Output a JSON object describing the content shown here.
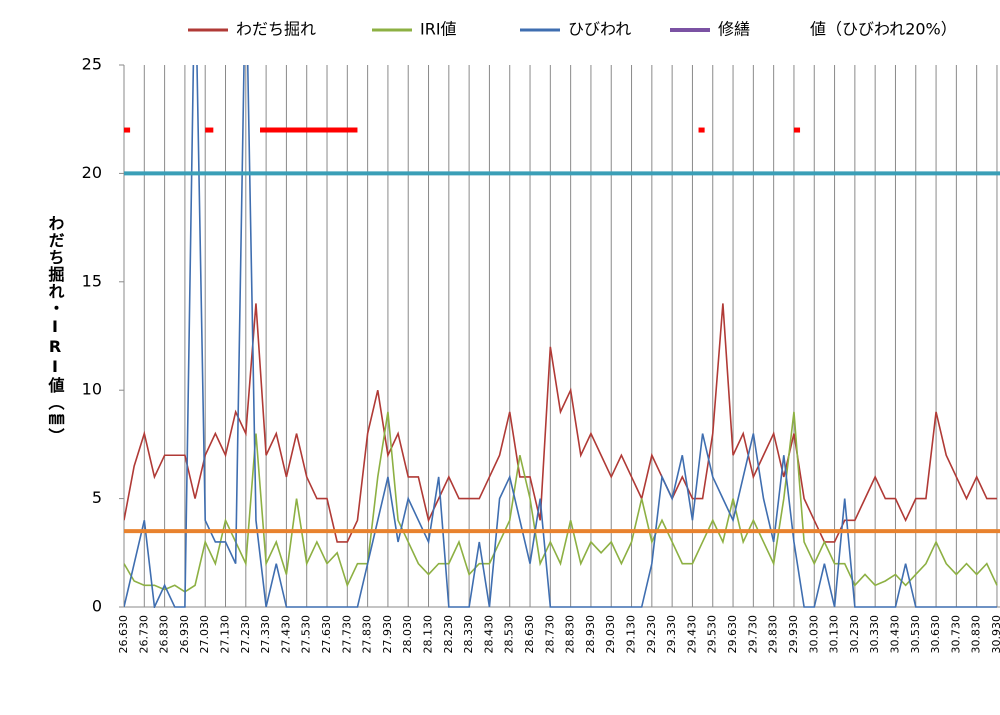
{
  "chart_data": {
    "type": "line",
    "ylabel": "わだち掘れ・IRI値（㎜）",
    "x": [
      26.63,
      26.68,
      26.73,
      26.78,
      26.83,
      26.88,
      26.93,
      26.98,
      27.03,
      27.08,
      27.13,
      27.18,
      27.23,
      27.28,
      27.33,
      27.38,
      27.43,
      27.48,
      27.53,
      27.58,
      27.63,
      27.68,
      27.73,
      27.78,
      27.83,
      27.88,
      27.93,
      27.98,
      28.03,
      28.08,
      28.13,
      28.18,
      28.23,
      28.28,
      28.33,
      28.38,
      28.43,
      28.48,
      28.53,
      28.58,
      28.63,
      28.68,
      28.73,
      28.78,
      28.83,
      28.88,
      28.93,
      28.98,
      29.03,
      29.08,
      29.13,
      29.18,
      29.23,
      29.28,
      29.33,
      29.38,
      29.43,
      29.48,
      29.53,
      29.58,
      29.63,
      29.68,
      29.73,
      29.78,
      29.83,
      29.88,
      29.93,
      29.98,
      30.03,
      30.08,
      30.13,
      30.18,
      30.23,
      30.28,
      30.33,
      30.38,
      30.43,
      30.48,
      30.53,
      30.58,
      30.63,
      30.68,
      30.73,
      30.78,
      30.83,
      30.88,
      30.93
    ],
    "series": [
      {
        "name": "わだち掘れ",
        "color": "#b03a36",
        "values": [
          4,
          6.5,
          8,
          6,
          7,
          7,
          7,
          5,
          7,
          8,
          7,
          9,
          8,
          14,
          7,
          8,
          6,
          8,
          6,
          5,
          5,
          3,
          3,
          4,
          8,
          10,
          7,
          8,
          6,
          6,
          4,
          5,
          6,
          5,
          5,
          5,
          6,
          7,
          9,
          6,
          6,
          4,
          12,
          9,
          10,
          7,
          8,
          7,
          6,
          7,
          6,
          5,
          7,
          6,
          5,
          6,
          5,
          5,
          8,
          14,
          7,
          8,
          6,
          7,
          8,
          6,
          8,
          5,
          4,
          3,
          3,
          4,
          4,
          5,
          6,
          5,
          5,
          4,
          5,
          5,
          9,
          7,
          6,
          5,
          6,
          5,
          5
        ]
      },
      {
        "name": "IRI値",
        "color": "#8db043",
        "values": [
          2,
          1.2,
          1,
          1,
          0.8,
          1,
          0.7,
          1,
          3,
          2,
          4,
          3,
          2,
          8,
          2,
          3,
          1.5,
          5,
          2,
          3,
          2,
          2.5,
          1,
          2,
          2,
          6,
          9,
          4,
          3,
          2,
          1.5,
          2,
          2,
          3,
          1.5,
          2,
          2,
          3,
          4,
          7,
          5,
          2,
          3,
          2,
          4,
          2,
          3,
          2.5,
          3,
          2,
          3,
          5,
          3,
          4,
          3,
          2,
          2,
          3,
          4,
          3,
          5,
          3,
          4,
          3,
          2,
          5,
          9,
          3,
          2,
          3,
          2,
          2,
          1,
          1.5,
          1,
          1.2,
          1.5,
          1,
          1.5,
          2,
          3,
          2,
          1.5,
          2,
          1.5,
          2,
          1
        ]
      },
      {
        "name": "ひびわれ",
        "color": "#3f6eb0",
        "values": [
          0,
          2,
          4,
          0,
          1,
          0,
          0,
          30,
          4,
          3,
          3,
          2,
          30,
          4,
          0,
          2,
          0,
          0,
          0,
          0,
          0,
          0,
          0,
          0,
          2,
          4,
          6,
          3,
          5,
          4,
          3,
          6,
          0,
          0,
          0,
          3,
          0,
          5,
          6,
          4,
          2,
          5,
          0,
          0,
          0,
          0,
          0,
          0,
          0,
          0,
          0,
          0,
          2,
          6,
          5,
          7,
          4,
          8,
          6,
          5,
          4,
          6,
          8,
          5,
          3,
          7,
          3,
          0,
          0,
          2,
          0,
          5,
          0,
          0,
          0,
          0,
          0,
          2,
          0,
          0,
          0,
          0,
          0,
          0,
          0,
          0,
          0
        ]
      }
    ],
    "repairs": {
      "name": "修繕",
      "color": "#ff0000",
      "legend_color": "#7b52a3",
      "value": 22,
      "segments": [
        [
          26.63,
          26.66
        ],
        [
          27.03,
          27.07
        ],
        [
          27.3,
          27.78
        ],
        [
          29.46,
          29.49
        ],
        [
          29.93,
          29.96
        ]
      ]
    },
    "reference_lines": [
      {
        "name": "値（ひびわれ20%）",
        "value": 20,
        "color": "#3a9fb7"
      },
      {
        "value": 3.5,
        "color": "#e8822e"
      }
    ],
    "xlim": [
      26.63,
      30.94
    ],
    "ylim": [
      0,
      25
    ],
    "yticks": [
      0,
      5,
      10,
      15,
      20,
      25
    ],
    "xticks": [
      {
        "value": 26.63,
        "label": "26.630"
      },
      {
        "value": 26.73,
        "label": "26.730"
      },
      {
        "value": 26.83,
        "label": "26.830"
      },
      {
        "value": 26.93,
        "label": "26.930"
      },
      {
        "value": 27.03,
        "label": "27.030"
      },
      {
        "value": 27.13,
        "label": "27.130"
      },
      {
        "value": 27.23,
        "label": "27.230"
      },
      {
        "value": 27.33,
        "label": "27.330"
      },
      {
        "value": 27.43,
        "label": "27.430"
      },
      {
        "value": 27.53,
        "label": "27.530"
      },
      {
        "value": 27.63,
        "label": "27.630"
      },
      {
        "value": 27.73,
        "label": "27.730"
      },
      {
        "value": 27.83,
        "label": "27.830"
      },
      {
        "value": 27.93,
        "label": "27.930"
      },
      {
        "value": 28.03,
        "label": "28.030"
      },
      {
        "value": 28.13,
        "label": "28.130"
      },
      {
        "value": 28.23,
        "label": "28.230"
      },
      {
        "value": 28.33,
        "label": "28.330"
      },
      {
        "value": 28.43,
        "label": "28.430"
      },
      {
        "value": 28.53,
        "label": "28.530"
      },
      {
        "value": 28.63,
        "label": "28.630"
      },
      {
        "value": 28.73,
        "label": "28.730"
      },
      {
        "value": 28.83,
        "label": "28.830"
      },
      {
        "value": 28.93,
        "label": "28.930"
      },
      {
        "value": 29.03,
        "label": "29.030"
      },
      {
        "value": 29.13,
        "label": "29.130"
      },
      {
        "value": 29.23,
        "label": "29.230"
      },
      {
        "value": 29.33,
        "label": "29.330"
      },
      {
        "value": 29.43,
        "label": "29.430"
      },
      {
        "value": 29.53,
        "label": "29.530"
      },
      {
        "value": 29.63,
        "label": "29.630"
      },
      {
        "value": 29.73,
        "label": "29.730"
      },
      {
        "value": 29.83,
        "label": "29.830"
      },
      {
        "value": 29.93,
        "label": "29.930"
      },
      {
        "value": 30.03,
        "label": "30.030"
      },
      {
        "value": 30.13,
        "label": "30.130"
      },
      {
        "value": 30.23,
        "label": "30.230"
      },
      {
        "value": 30.33,
        "label": "30.330"
      },
      {
        "value": 30.43,
        "label": "30.430"
      },
      {
        "value": 30.53,
        "label": "30.530"
      },
      {
        "value": 30.63,
        "label": "30.630"
      },
      {
        "value": 30.73,
        "label": "30.730"
      },
      {
        "value": 30.83,
        "label": "30.830"
      },
      {
        "value": 30.93,
        "label": "30.930"
      }
    ],
    "grid": "x"
  }
}
